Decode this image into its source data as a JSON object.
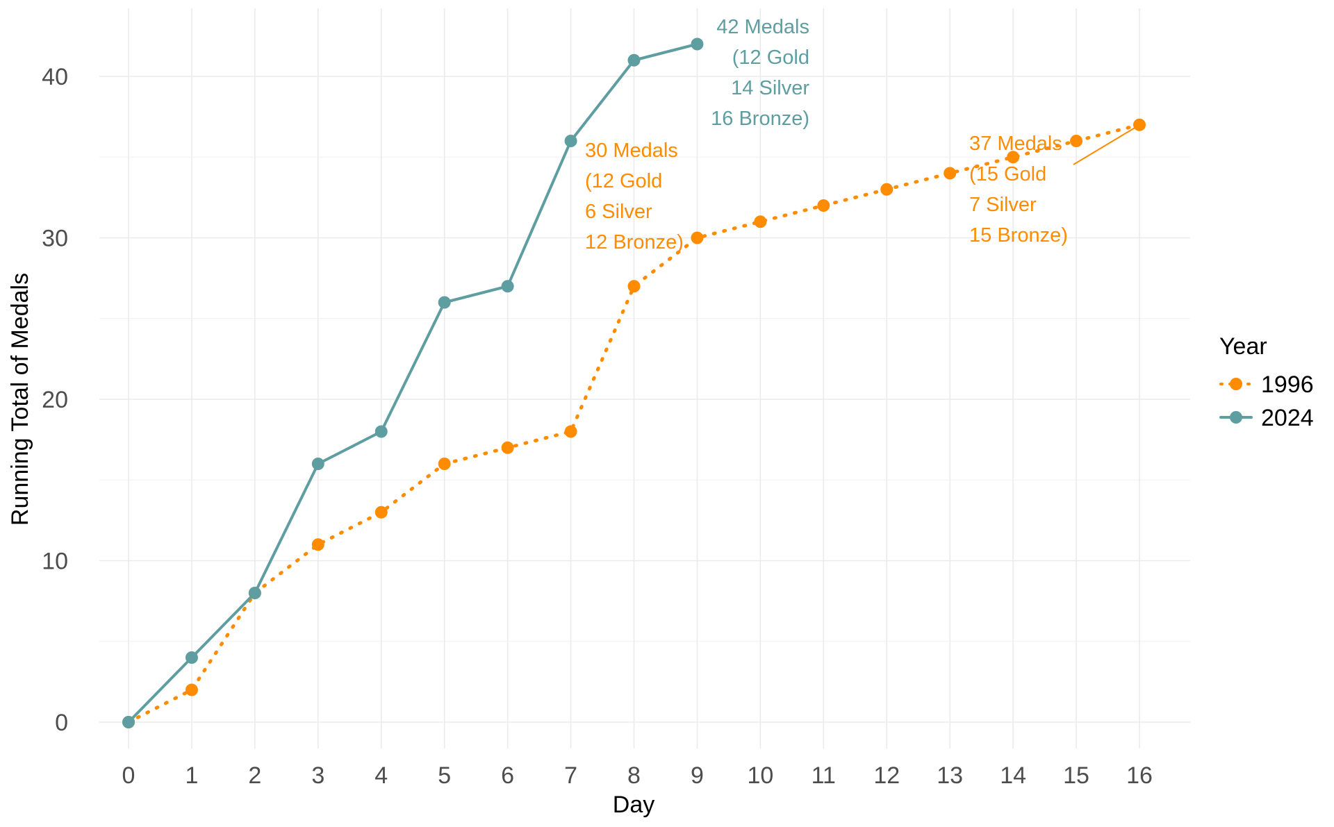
{
  "chart_data": {
    "type": "line",
    "xlabel": "Day",
    "ylabel": "Running Total of Medals",
    "xlim": [
      0,
      16
    ],
    "ylim": [
      0,
      42
    ],
    "x_ticks": [
      0,
      1,
      2,
      3,
      4,
      5,
      6,
      7,
      8,
      9,
      10,
      11,
      12,
      13,
      14,
      15,
      16
    ],
    "y_ticks": [
      0,
      10,
      20,
      30,
      40
    ],
    "grid": true,
    "legend": {
      "title": "Year",
      "position": "right"
    },
    "series": [
      {
        "name": "1996",
        "color": "#FF8C00",
        "line_style": "dotted",
        "x": [
          0,
          1,
          2,
          3,
          4,
          5,
          6,
          7,
          8,
          9,
          10,
          11,
          12,
          13,
          14,
          15,
          16
        ],
        "y": [
          0,
          2,
          8,
          11,
          13,
          16,
          17,
          18,
          27,
          30,
          31,
          32,
          33,
          34,
          35,
          36,
          37
        ]
      },
      {
        "name": "2024",
        "color": "#5F9EA0",
        "line_style": "solid",
        "x": [
          0,
          1,
          2,
          3,
          4,
          5,
          6,
          7,
          8,
          9
        ],
        "y": [
          0,
          4,
          8,
          16,
          18,
          26,
          27,
          36,
          41,
          42
        ]
      }
    ],
    "annotations": [
      {
        "series": "2024",
        "x": 9,
        "y": 42,
        "lines": [
          "42 Medals",
          "(12 Gold",
          "14 Silver",
          "16 Bronze)"
        ]
      },
      {
        "series": "1996",
        "x": 9,
        "y": 30,
        "lines": [
          "30 Medals",
          "(12 Gold",
          "6 Silver",
          "12 Bronze)"
        ]
      },
      {
        "series": "1996",
        "x": 16,
        "y": 37,
        "lines": [
          "37 Medals",
          "(15 Gold",
          "7 Silver",
          "15 Bronze)"
        ]
      }
    ]
  }
}
